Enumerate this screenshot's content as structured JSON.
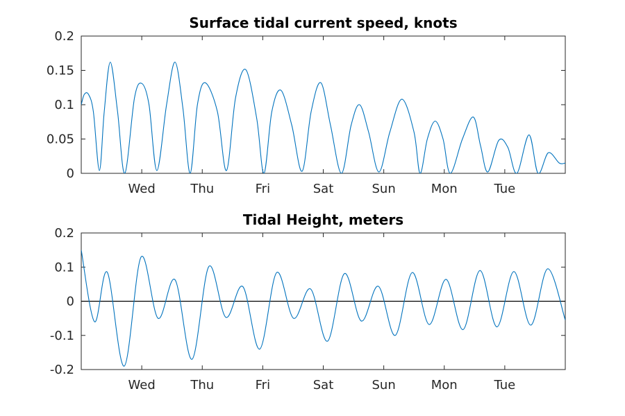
{
  "chart_data": [
    {
      "type": "line",
      "title": "Surface tidal current speed, knots",
      "xlim": [
        0,
        8
      ],
      "ylim": [
        0,
        0.2
      ],
      "yticks": [
        0,
        0.05,
        0.1,
        0.15,
        0.2
      ],
      "ytick_labels": [
        "0",
        "0.05",
        "0.1",
        "0.15",
        "0.2"
      ],
      "xticks": [
        1,
        2,
        3,
        4,
        5,
        6,
        7
      ],
      "xtick_labels": [
        "Wed",
        "Thu",
        "Fri",
        "Sat",
        "Sun",
        "Mon",
        "Tue"
      ],
      "grid": false,
      "series": [
        {
          "color": "#0072BD",
          "x": [
            0,
            0.05,
            0.12,
            0.2,
            0.3,
            0.38,
            0.48,
            0.6,
            0.72,
            0.88,
            1.0,
            1.12,
            1.25,
            1.41,
            1.55,
            1.68,
            1.8,
            1.92,
            2.05,
            2.25,
            2.4,
            2.55,
            2.72,
            2.9,
            3.02,
            3.15,
            3.3,
            3.48,
            3.65,
            3.8,
            3.96,
            4.12,
            4.3,
            4.46,
            4.6,
            4.75,
            4.92,
            5.1,
            5.3,
            5.5,
            5.6,
            5.72,
            5.85,
            5.98,
            6.1,
            6.3,
            6.48,
            6.6,
            6.72,
            6.9,
            7.05,
            7.2,
            7.4,
            7.55,
            7.72,
            7.9,
            8.0
          ],
          "y": [
            0.1,
            0.115,
            0.115,
            0.09,
            0.004,
            0.09,
            0.162,
            0.09,
            0.0,
            0.11,
            0.131,
            0.1,
            0.004,
            0.1,
            0.162,
            0.095,
            0.0,
            0.1,
            0.132,
            0.09,
            0.004,
            0.11,
            0.151,
            0.08,
            0.0,
            0.09,
            0.121,
            0.07,
            0.003,
            0.09,
            0.132,
            0.07,
            0.0,
            0.07,
            0.1,
            0.06,
            0.002,
            0.06,
            0.108,
            0.06,
            0.0,
            0.05,
            0.076,
            0.05,
            0.0,
            0.05,
            0.082,
            0.04,
            0.002,
            0.048,
            0.038,
            0.0,
            0.056,
            0.0,
            0.03,
            0.015,
            0.015
          ]
        }
      ]
    },
    {
      "type": "line",
      "title": "Tidal Height, meters",
      "xlim": [
        0,
        8
      ],
      "ylim": [
        -0.2,
        0.2
      ],
      "yticks": [
        -0.2,
        -0.1,
        0,
        0.1,
        0.2
      ],
      "ytick_labels": [
        "-0.2",
        "-0.1",
        "0",
        "0.1",
        "0.2"
      ],
      "xticks": [
        1,
        2,
        3,
        4,
        5,
        6,
        7
      ],
      "xtick_labels": [
        "Wed",
        "Thu",
        "Fri",
        "Sat",
        "Sun",
        "Mon",
        "Tue"
      ],
      "grid": false,
      "zero_line": true,
      "series": [
        {
          "color": "#0072BD",
          "x": [
            0,
            0.22,
            0.43,
            0.71,
            0.99,
            1.27,
            1.55,
            1.83,
            2.11,
            2.39,
            2.67,
            2.95,
            3.23,
            3.51,
            3.79,
            4.07,
            4.35,
            4.63,
            4.91,
            5.19,
            5.47,
            5.75,
            6.03,
            6.31,
            6.59,
            6.87,
            7.15,
            7.43,
            7.71,
            8.0
          ],
          "y": [
            0.15,
            -0.06,
            0.085,
            -0.19,
            0.13,
            -0.05,
            0.063,
            -0.17,
            0.102,
            -0.047,
            0.043,
            -0.14,
            0.084,
            -0.05,
            0.036,
            -0.117,
            0.081,
            -0.058,
            0.044,
            -0.1,
            0.084,
            -0.068,
            0.064,
            -0.083,
            0.09,
            -0.075,
            0.087,
            -0.07,
            0.095,
            -0.055
          ]
        }
      ]
    }
  ]
}
